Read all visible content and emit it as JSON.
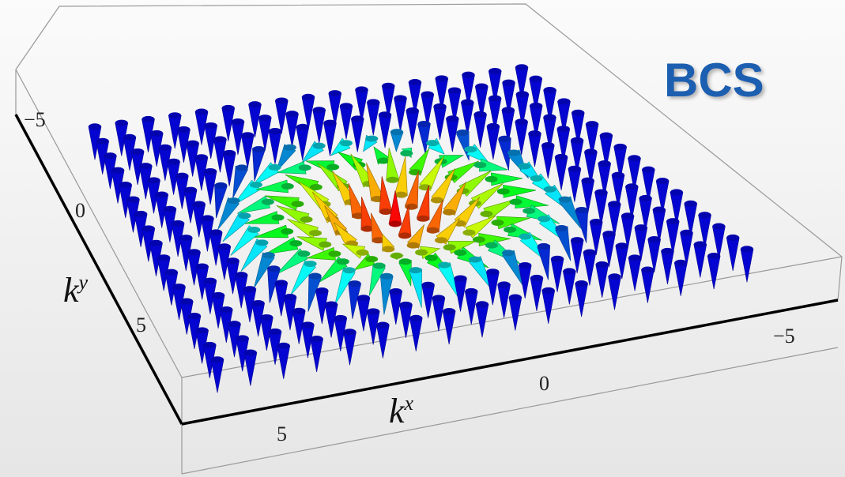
{
  "title": "BCS",
  "x_axis": {
    "label": "k",
    "superscript": "x",
    "ticks": [
      "5",
      "0",
      "−5"
    ]
  },
  "y_axis": {
    "label": "k",
    "superscript": "y",
    "ticks": [
      "−5",
      "0",
      "5"
    ]
  }
}
